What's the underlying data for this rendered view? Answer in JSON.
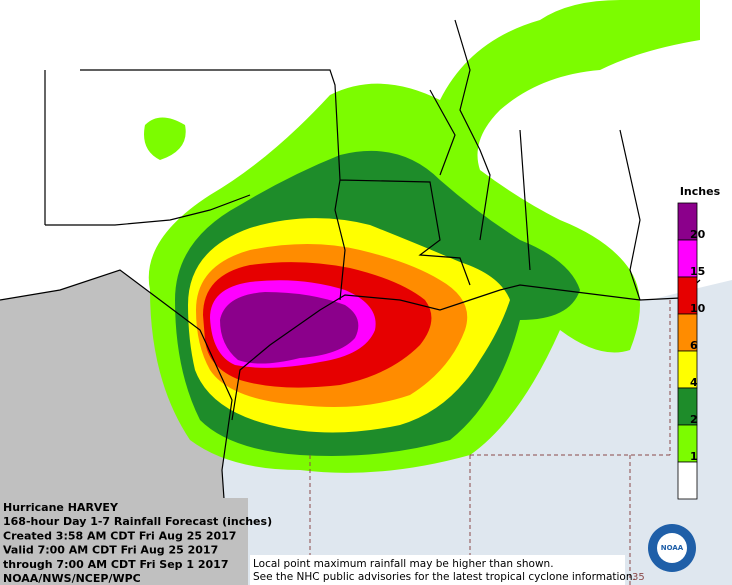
{
  "header": {
    "lines": [
      "Hurricane HARVEY",
      "168-hour Day 1-7 Rainfall Forecast (inches)",
      "Created 3:58 AM CDT Fri Aug 25 2017",
      "Valid 7:00 AM CDT Fri Aug 25 2017",
      "through 7:00 AM CDT Fri Sep 1 2017",
      "NOAA/NWS/NCEP/WPC"
    ]
  },
  "notice": {
    "lines": [
      "Local point maximum rainfall may be higher than shown.",
      "See the NHC public advisories for the latest tropical cyclone information."
    ]
  },
  "grid_label": "35",
  "logo": "NOAA",
  "legend": {
    "title": "Inches",
    "levels": [
      {
        "value": 20,
        "color": "#8b008b"
      },
      {
        "value": 15,
        "color": "#ff00ff"
      },
      {
        "value": 10,
        "color": "#e60000"
      },
      {
        "value": 6,
        "color": "#ff8c00"
      },
      {
        "value": 4,
        "color": "#ffff00"
      },
      {
        "value": 2,
        "color": "#1e8c2a"
      },
      {
        "value": 1,
        "color": "#7cfc00"
      },
      {
        "color": "#ffffff"
      }
    ]
  }
}
